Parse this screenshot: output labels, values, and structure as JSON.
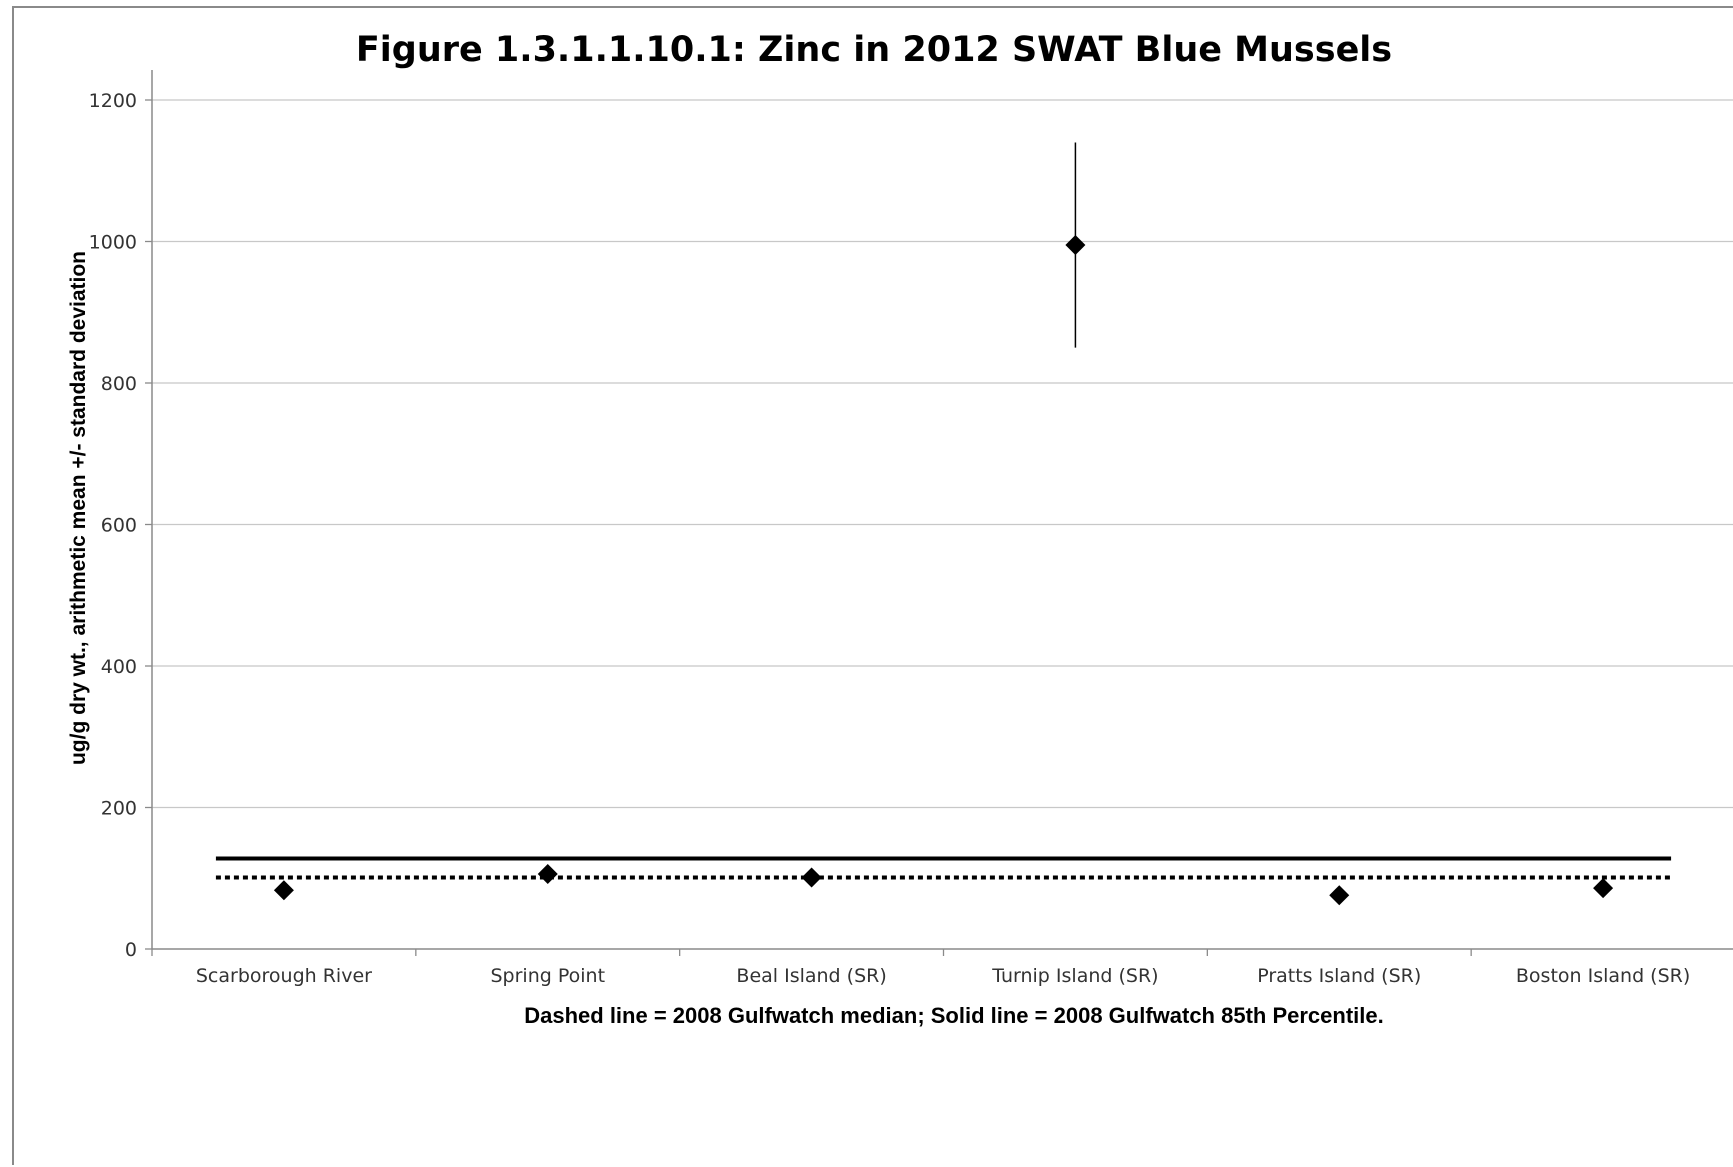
{
  "chart_data": {
    "type": "scatter",
    "title": "Figure 1.3.1.1.10.1:  Zinc in 2012 SWAT Blue Mussels",
    "xlabel": "Dashed line = 2008 Gulfwatch median; Solid line = 2008 Gulfwatch  85th Percentile.",
    "ylabel": "ug/g dry wt., arithmetic mean +/- standard deviation",
    "ylim": [
      0,
      1200
    ],
    "yticks": [
      "0",
      "200",
      "400",
      "600",
      "800",
      "1000",
      "1200"
    ],
    "grid": true,
    "categories": [
      "Scarborough River",
      "Spring Point",
      "Beal Island (SR)",
      "Turnip Island (SR)",
      "Pratts Island (SR)",
      "Boston Island (SR)"
    ],
    "values": [
      83,
      106,
      101,
      995,
      76,
      86
    ],
    "std_dev": [
      null,
      null,
      null,
      145,
      null,
      null
    ],
    "reference_lines": [
      {
        "style": "dashed",
        "value": 101
      },
      {
        "style": "solid",
        "value": 128
      }
    ],
    "colors": {
      "marker": "#000000",
      "grid": "#c8c8c8",
      "axis": "#8a8a8a"
    }
  }
}
